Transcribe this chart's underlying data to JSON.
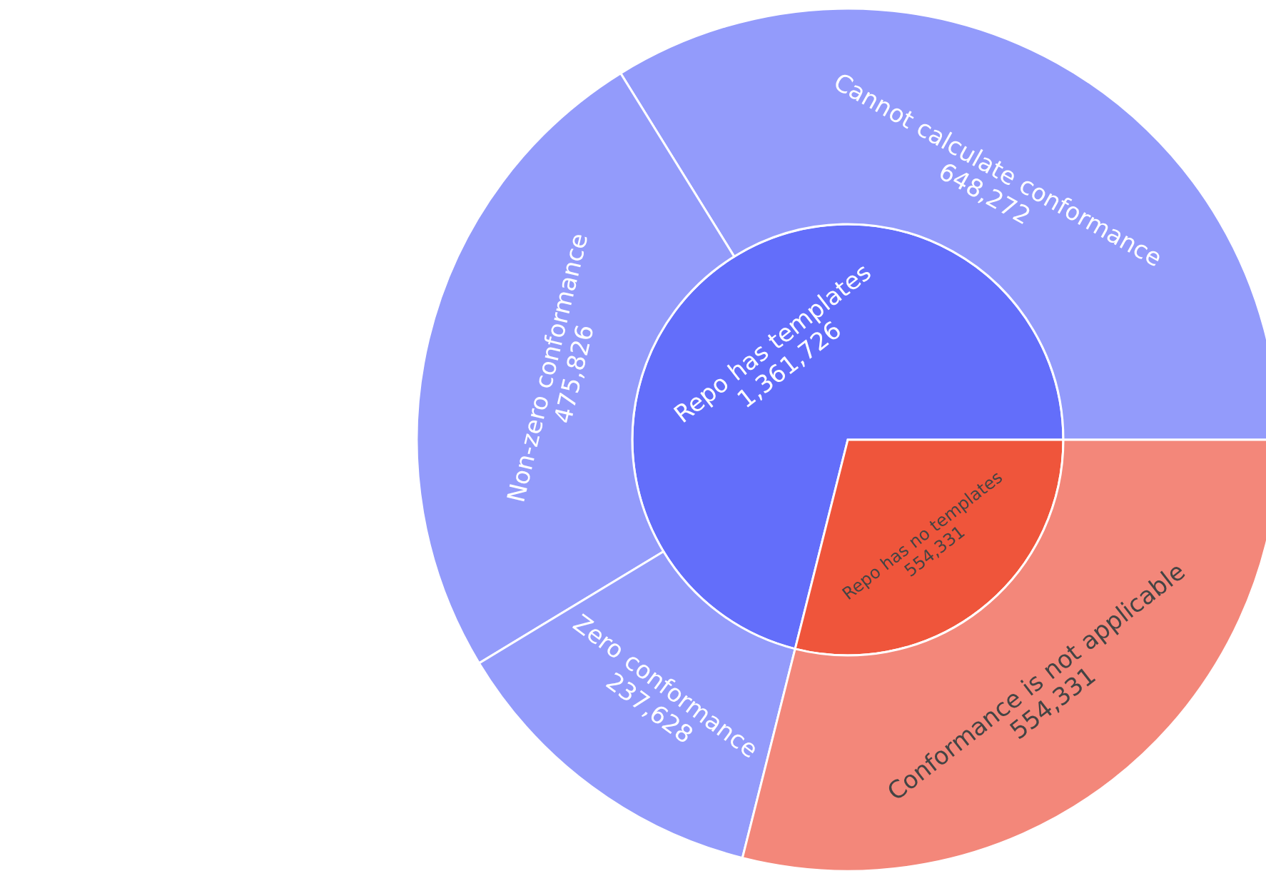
{
  "chart_data": {
    "type": "other",
    "categories": [
      "Repo has templates",
      "Repo has no templates",
      "Cannot calculate conformance",
      "Non-zero conformance",
      "Zero conformance",
      "Conformance is not applicable"
    ],
    "series": [
      {
        "values": [
          1361726,
          554331,
          null,
          null,
          null,
          null
        ],
        "colors": [
          "#636efa",
          "#ef553b",
          null,
          null,
          null,
          null
        ],
        "value_labels": [
          "1,361,726",
          "554,331",
          null,
          null,
          null,
          null
        ]
      },
      {
        "values": [
          null,
          null,
          648272,
          475826,
          237628,
          554331
        ],
        "colors": [
          null,
          null,
          "#939bfb",
          "#939bfb",
          "#939bfb",
          "#f3877a"
        ],
        "value_labels": [
          null,
          null,
          "648,272",
          "475,826",
          "237,628",
          "554,331"
        ]
      }
    ]
  }
}
